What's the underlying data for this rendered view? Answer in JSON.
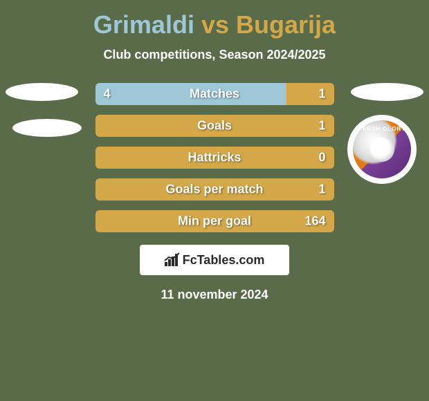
{
  "title": {
    "player1": "Grimaldi",
    "vs": "vs",
    "player2": "Bugarija"
  },
  "subtitle": "Club competitions, Season 2024/2025",
  "colors": {
    "background": "#5a6b4a",
    "player1": "#9ec8d8",
    "player2": "#d4a849",
    "white": "#ffffff",
    "text_dark": "#2a2a2a"
  },
  "club_logo": {
    "text": "PERTH GLORY"
  },
  "stats": [
    {
      "label": "Matches",
      "left_value": "4",
      "right_value": "1",
      "left_pct": 80,
      "right_pct": 20
    },
    {
      "label": "Goals",
      "left_value": "",
      "right_value": "1",
      "left_pct": 0,
      "right_pct": 100
    },
    {
      "label": "Hattricks",
      "left_value": "",
      "right_value": "0",
      "left_pct": 0,
      "right_pct": 100
    },
    {
      "label": "Goals per match",
      "left_value": "",
      "right_value": "1",
      "left_pct": 0,
      "right_pct": 100
    },
    {
      "label": "Min per goal",
      "left_value": "",
      "right_value": "164",
      "left_pct": 0,
      "right_pct": 100
    }
  ],
  "brand": {
    "text": "FcTables.com"
  },
  "date": "11 november 2024"
}
